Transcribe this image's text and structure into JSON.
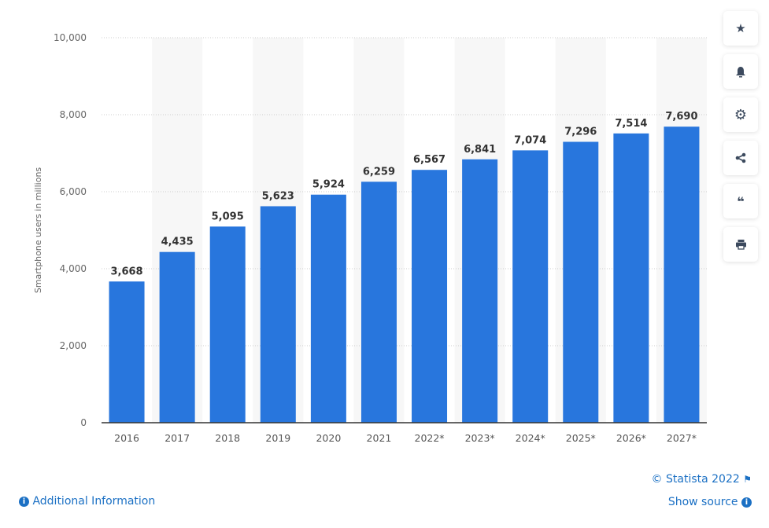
{
  "chart_data": {
    "type": "bar",
    "categories": [
      "2016",
      "2017",
      "2018",
      "2019",
      "2020",
      "2021",
      "2022*",
      "2023*",
      "2024*",
      "2025*",
      "2026*",
      "2027*"
    ],
    "values": [
      3668,
      4435,
      5095,
      5623,
      5924,
      6259,
      6567,
      6841,
      7074,
      7296,
      7514,
      7690
    ],
    "value_labels": [
      "3,668",
      "4,435",
      "5,095",
      "5,623",
      "5,924",
      "6,259",
      "6,567",
      "6,841",
      "7,074",
      "7,296",
      "7,514",
      "7,690"
    ],
    "ylabel": "Smartphone users in millions",
    "ylim": [
      0,
      10000
    ],
    "yticks": [
      0,
      2000,
      4000,
      6000,
      8000,
      10000
    ],
    "ytick_labels": [
      "0",
      "2,000",
      "4,000",
      "6,000",
      "8,000",
      "10,000"
    ],
    "grid": true,
    "bar_color": "#2876dd"
  },
  "toolbar": {
    "icons": [
      "star-icon",
      "bell-icon",
      "gear-icon",
      "share-icon",
      "quote-icon",
      "print-icon"
    ]
  },
  "footer": {
    "copyright": "© Statista 2022",
    "show_source": "Show source",
    "additional_info": "Additional Information"
  },
  "colors": {
    "link": "#1b70c4"
  }
}
